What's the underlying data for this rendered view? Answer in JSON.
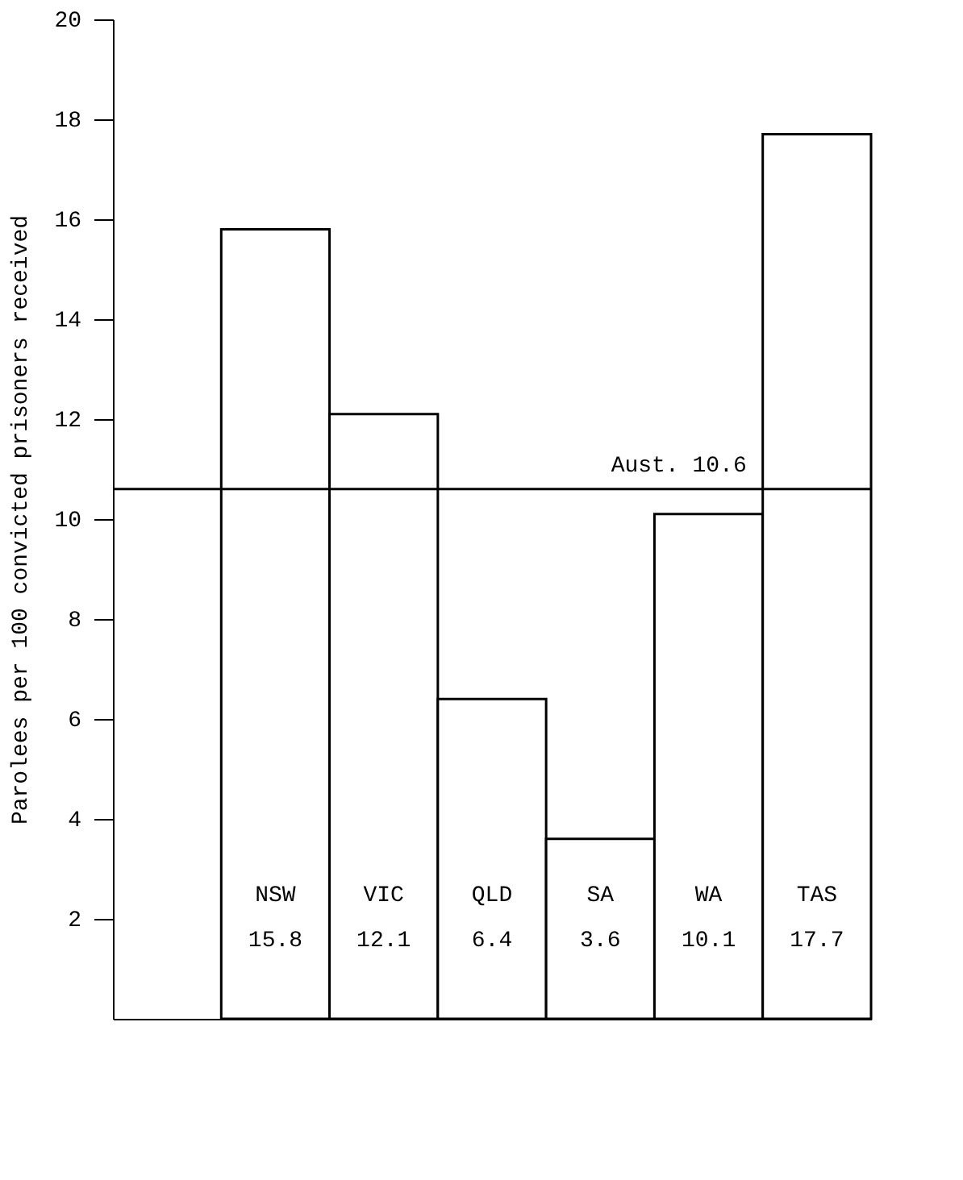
{
  "chart_data": {
    "type": "bar",
    "ylabel": "Parolees per 100 convicted prisoners received",
    "categories": [
      "NSW",
      "VIC",
      "QLD",
      "SA",
      "WA",
      "TAS"
    ],
    "values": [
      15.8,
      12.1,
      6.4,
      3.6,
      10.1,
      17.7
    ],
    "color": "#ffffff",
    "ylim": [
      0,
      20
    ],
    "yticks": [
      2,
      4,
      6,
      8,
      10,
      12,
      14,
      16,
      18,
      20
    ],
    "grid": false,
    "data_labels": true,
    "ref_lines": [
      {
        "axis": "y",
        "value": 10.6,
        "label": "Aust. 10.6",
        "color": "#000000"
      }
    ]
  }
}
